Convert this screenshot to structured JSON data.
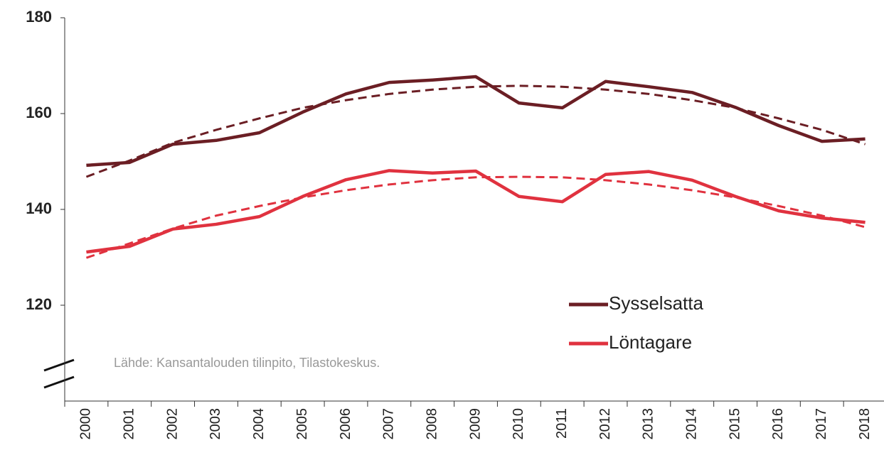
{
  "chart_data": {
    "type": "line",
    "categories": [
      "2000",
      "2001",
      "2002",
      "2003",
      "2004",
      "2005",
      "2006",
      "2007",
      "2008",
      "2009",
      "2010",
      "2011",
      "2012",
      "2013",
      "2014",
      "2015",
      "2016",
      "2017",
      "2018"
    ],
    "series": [
      {
        "name": "Sysselsatta",
        "color": "#6b1e24",
        "values": [
          149.2,
          149.8,
          153.6,
          154.4,
          156.0,
          160.3,
          164.1,
          166.5,
          167.0,
          167.7,
          162.2,
          161.2,
          166.7,
          165.6,
          164.4,
          161.3,
          157.5,
          154.2,
          154.7
        ]
      },
      {
        "name": "Löntagare",
        "color": "#e0323f",
        "values": [
          131.1,
          132.3,
          135.9,
          136.9,
          138.5,
          142.7,
          146.2,
          148.1,
          147.6,
          148.0,
          142.7,
          141.6,
          147.3,
          147.9,
          146.1,
          142.7,
          139.7,
          138.2,
          137.3
        ]
      }
    ],
    "trendlines": [
      {
        "color": "#6b1e24",
        "values": [
          146.8,
          150.2,
          153.9,
          156.6,
          159.0,
          161.2,
          162.8,
          164.1,
          165.0,
          165.6,
          165.8,
          165.6,
          165.0,
          164.1,
          162.8,
          161.2,
          159.0,
          156.6,
          153.6
        ]
      },
      {
        "color": "#e0323f",
        "values": [
          129.9,
          132.9,
          136.0,
          138.7,
          140.7,
          142.5,
          144.0,
          145.2,
          146.1,
          146.7,
          146.8,
          146.7,
          146.1,
          145.2,
          144.0,
          142.5,
          140.7,
          138.7,
          136.3
        ]
      }
    ],
    "ylim": [
      100,
      180
    ],
    "yticks": [
      120,
      140,
      160,
      180
    ],
    "annotation": "Lähde: Kansantalouden tilinpito, Tilastokeskus."
  }
}
